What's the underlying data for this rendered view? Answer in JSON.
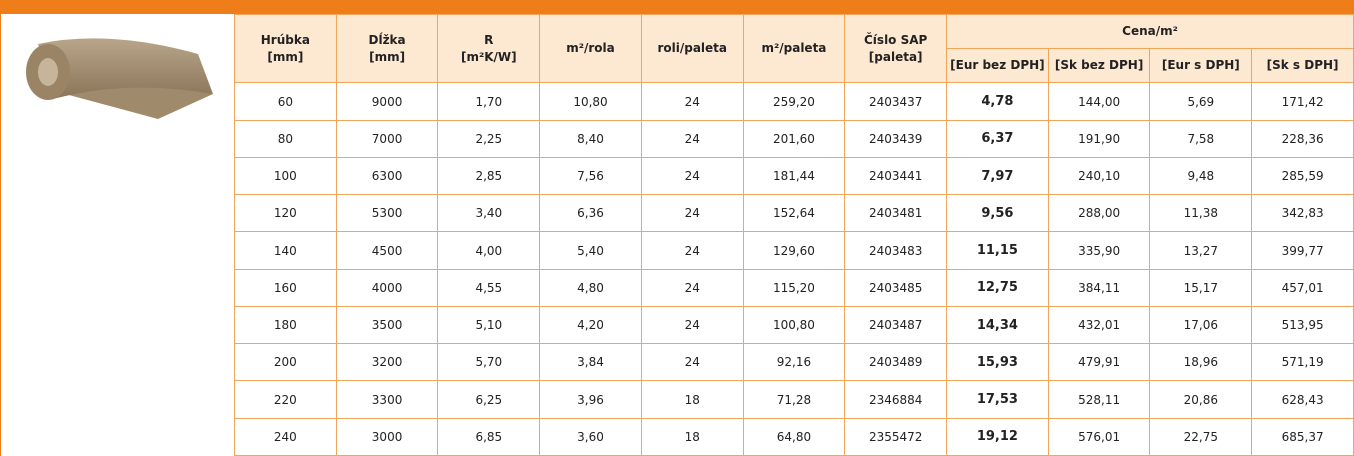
{
  "table": {
    "columns": [
      [
        "Hrúbka",
        "[mm]"
      ],
      [
        "Dĺžka",
        "[mm]"
      ],
      [
        "R",
        "[m²K/W]"
      ],
      [
        "m²/rola"
      ],
      [
        "roli/paleta"
      ],
      [
        "m²/paleta"
      ],
      [
        "Číslo SAP",
        "[paleta]"
      ]
    ],
    "group": "Cena/m²",
    "group_columns": [
      "[Eur bez DPH]",
      "[Sk bez DPH]",
      "[Eur s DPH]",
      "[Sk s DPH]"
    ],
    "rows": [
      [
        "60",
        "9000",
        "1,70",
        "10,80",
        "24",
        "259,20",
        "2403437",
        "4,78",
        "144,00",
        "5,69",
        "171,42"
      ],
      [
        "80",
        "7000",
        "2,25",
        "8,40",
        "24",
        "201,60",
        "2403439",
        "6,37",
        "191,90",
        "7,58",
        "228,36"
      ],
      [
        "100",
        "6300",
        "2,85",
        "7,56",
        "24",
        "181,44",
        "2403441",
        "7,97",
        "240,10",
        "9,48",
        "285,59"
      ],
      [
        "120",
        "5300",
        "3,40",
        "6,36",
        "24",
        "152,64",
        "2403481",
        "9,56",
        "288,00",
        "11,38",
        "342,83"
      ],
      [
        "140",
        "4500",
        "4,00",
        "5,40",
        "24",
        "129,60",
        "2403483",
        "11,15",
        "335,90",
        "13,27",
        "399,77"
      ],
      [
        "160",
        "4000",
        "4,55",
        "4,80",
        "24",
        "115,20",
        "2403485",
        "12,75",
        "384,11",
        "15,17",
        "457,01"
      ],
      [
        "180",
        "3500",
        "5,10",
        "4,20",
        "24",
        "100,80",
        "2403487",
        "14,34",
        "432,01",
        "17,06",
        "513,95"
      ],
      [
        "200",
        "3200",
        "5,70",
        "3,84",
        "24",
        "92,16",
        "2403489",
        "15,93",
        "479,91",
        "18,96",
        "571,19"
      ],
      [
        "220",
        "3300",
        "6,25",
        "3,96",
        "18",
        "71,28",
        "2346884",
        "17,53",
        "528,11",
        "20,86",
        "628,43"
      ],
      [
        "240",
        "3000",
        "6,85",
        "3,60",
        "18",
        "64,80",
        "2355472",
        "19,12",
        "576,01",
        "22,75",
        "685,37"
      ]
    ]
  }
}
